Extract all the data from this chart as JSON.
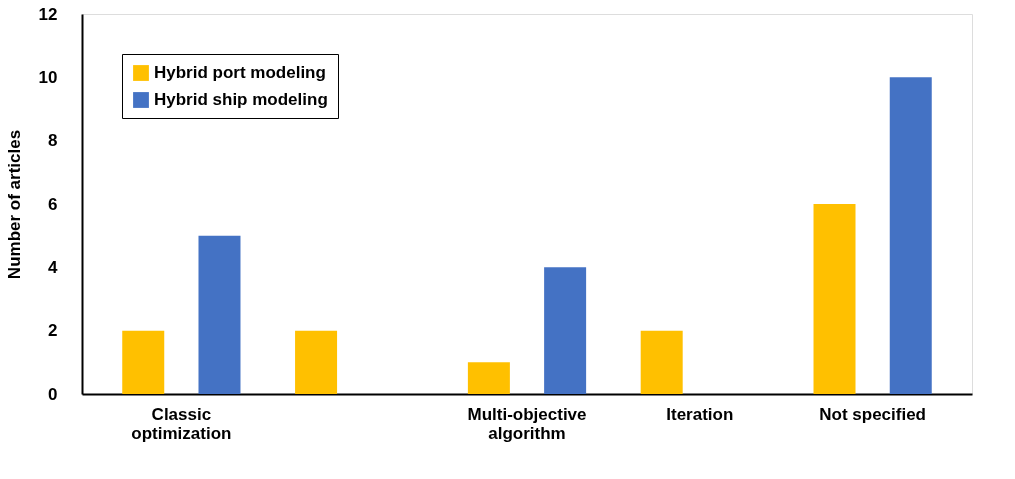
{
  "chart_data": {
    "type": "bar",
    "ylabel": "Number of articles",
    "categories": [
      "Classic optimization",
      null,
      "Multi-objective algorithm",
      "Iteration",
      "Not specified"
    ],
    "series": [
      {
        "name": "Hybrid port modeling",
        "color": "#ffc000",
        "values": [
          2,
          2,
          1,
          2,
          6
        ]
      },
      {
        "name": "Hybrid ship modeling",
        "color": "#4472c4",
        "values": [
          5,
          0,
          4,
          0,
          10
        ]
      }
    ],
    "ylim": [
      0,
      12
    ],
    "yticks": [
      0,
      2,
      4,
      6,
      8,
      10,
      12
    ],
    "grid": false,
    "legend": "top left"
  }
}
